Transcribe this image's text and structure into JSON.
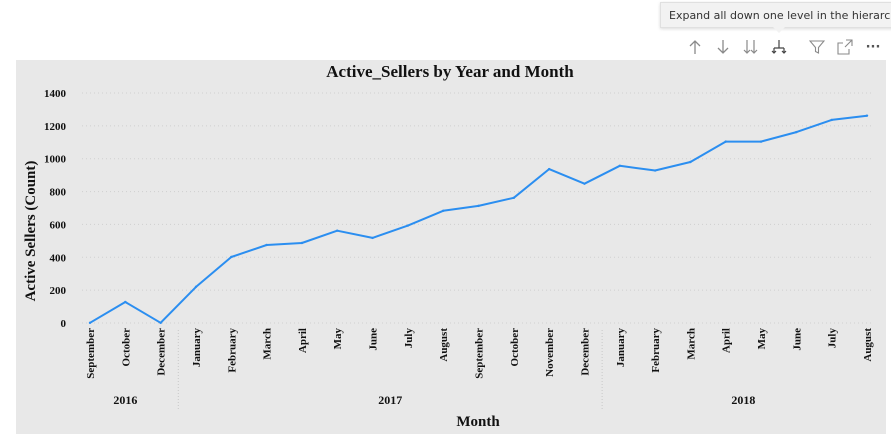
{
  "tooltip": {
    "text": "Expand all down one level in the hierarchy"
  },
  "toolbar": {
    "icons": [
      "arrow-up-icon",
      "arrow-down-icon",
      "double-arrow-down-icon",
      "expand-hierarchy-icon",
      "filter-icon",
      "focus-mode-icon",
      "more-options-icon"
    ],
    "more_label": "···"
  },
  "colors": {
    "line": "#2b8ef0",
    "panel": "#e8e8e8",
    "grid": "#cfcfcf"
  },
  "chart_data": {
    "type": "line",
    "title": "Active_Sellers by Year and Month",
    "xlabel": "Month",
    "ylabel": "Active Sellers (Count)",
    "ylim": [
      0,
      1400
    ],
    "yticks": [
      "0",
      "200",
      "400",
      "600",
      "800",
      "1000",
      "1200",
      "1400"
    ],
    "grid": true,
    "categories": [
      "September",
      "October",
      "December",
      "January",
      "February",
      "March",
      "April",
      "May",
      "June",
      "July",
      "August",
      "September",
      "October",
      "November",
      "December",
      "January",
      "February",
      "March",
      "April",
      "May",
      "June",
      "July",
      "August"
    ],
    "years": [
      {
        "label": "2016",
        "count": 3
      },
      {
        "label": "2017",
        "count": 12
      },
      {
        "label": "2018",
        "count": 8
      }
    ],
    "series": [
      {
        "values": [
          1,
          128,
          1,
          220,
          402,
          475,
          487,
          562,
          518,
          593,
          683,
          713,
          762,
          937,
          848,
          957,
          928,
          980,
          1104,
          1104,
          1162,
          1236,
          1262
        ]
      }
    ]
  }
}
